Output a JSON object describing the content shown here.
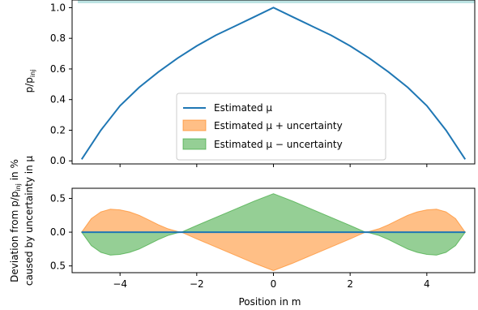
{
  "chart_data": [
    {
      "type": "line",
      "ylabel_main": "p/p",
      "ylabel_sub": "inj",
      "xlim": [
        -5.25,
        5.25
      ],
      "ylim": [
        -0.02,
        1.05
      ],
      "yticks": [
        "0.0",
        "0.2",
        "0.4",
        "0.6",
        "0.8",
        "1.0"
      ],
      "ytick_values": [
        0.0,
        0.2,
        0.4,
        0.6,
        0.8,
        1.0
      ],
      "x": [
        -5.0,
        -4.5,
        -4.0,
        -3.5,
        -3.0,
        -2.5,
        -2.0,
        -1.5,
        -1.0,
        -0.5,
        0.0,
        0.5,
        1.0,
        1.5,
        2.0,
        2.5,
        3.0,
        3.5,
        4.0,
        4.5,
        5.0
      ],
      "series": [
        {
          "name": "Estimated μ",
          "values": [
            0.01,
            0.2,
            0.36,
            0.48,
            0.58,
            0.67,
            0.75,
            0.82,
            0.88,
            0.94,
            1.0,
            0.94,
            0.88,
            0.82,
            0.75,
            0.67,
            0.58,
            0.48,
            0.36,
            0.2,
            0.01
          ]
        }
      ],
      "legend": {
        "position": "lower-center",
        "entries": [
          {
            "label": "Estimated μ",
            "kind": "line",
            "color": "#1f77b4"
          },
          {
            "label": "Estimated μ + uncertainty",
            "kind": "area",
            "color": "#ff7f0e"
          },
          {
            "label": "Estimated μ − uncertainty",
            "kind": "area",
            "color": "#2ca02c"
          }
        ]
      }
    },
    {
      "type": "area",
      "ylabel_line1": "Deviation from p/p",
      "ylabel_line1_sub": "inj",
      "ylabel_line1_end": " in %",
      "ylabel_line2": "caused by uncertainty in μ",
      "xlabel": "Position in m",
      "xlim": [
        -5.25,
        5.25
      ],
      "ylim": [
        -0.6,
        0.65
      ],
      "yticks": [
        "0.5",
        "0.0",
        "0.5"
      ],
      "ytick_values": [
        0.5,
        0.0,
        -0.5
      ],
      "xticks": [
        "−4",
        "−2",
        "0",
        "2",
        "4"
      ],
      "xtick_values": [
        -4,
        -2,
        0,
        2,
        4
      ],
      "x": [
        -5.0,
        -4.75,
        -4.5,
        -4.25,
        -4.0,
        -3.75,
        -3.5,
        -3.25,
        -3.0,
        -2.75,
        -2.5,
        -2.4,
        -2.0,
        -1.5,
        -1.0,
        -0.5,
        0.0,
        0.5,
        1.0,
        1.5,
        2.0,
        2.4,
        2.5,
        2.75,
        3.0,
        3.25,
        3.5,
        3.75,
        4.0,
        4.25,
        4.5,
        4.75,
        5.0
      ],
      "series": [
        {
          "name": "Estimated μ + uncertainty",
          "color": "#ff7f0e",
          "values": [
            0.0,
            0.2,
            0.3,
            0.34,
            0.33,
            0.3,
            0.25,
            0.18,
            0.11,
            0.05,
            0.01,
            0.0,
            -0.1,
            -0.22,
            -0.34,
            -0.46,
            -0.57,
            -0.46,
            -0.34,
            -0.22,
            -0.1,
            0.0,
            0.01,
            0.05,
            0.11,
            0.18,
            0.25,
            0.3,
            0.33,
            0.34,
            0.3,
            0.2,
            0.0
          ]
        },
        {
          "name": "Estimated μ − uncertainty",
          "color": "#2ca02c",
          "values": [
            0.0,
            -0.2,
            -0.3,
            -0.34,
            -0.33,
            -0.3,
            -0.25,
            -0.18,
            -0.11,
            -0.05,
            -0.01,
            0.0,
            0.1,
            0.22,
            0.34,
            0.46,
            0.57,
            0.46,
            0.34,
            0.22,
            0.1,
            0.0,
            -0.01,
            -0.05,
            -0.11,
            -0.18,
            -0.25,
            -0.3,
            -0.33,
            -0.34,
            -0.3,
            -0.2,
            0.0
          ]
        },
        {
          "name": "Estimated μ",
          "color": "#1f77b4",
          "values": [
            0,
            0,
            0,
            0,
            0,
            0,
            0,
            0,
            0,
            0,
            0,
            0,
            0,
            0,
            0,
            0,
            0,
            0,
            0,
            0,
            0,
            0,
            0,
            0,
            0,
            0,
            0,
            0,
            0,
            0,
            0,
            0,
            0
          ]
        }
      ]
    }
  ]
}
